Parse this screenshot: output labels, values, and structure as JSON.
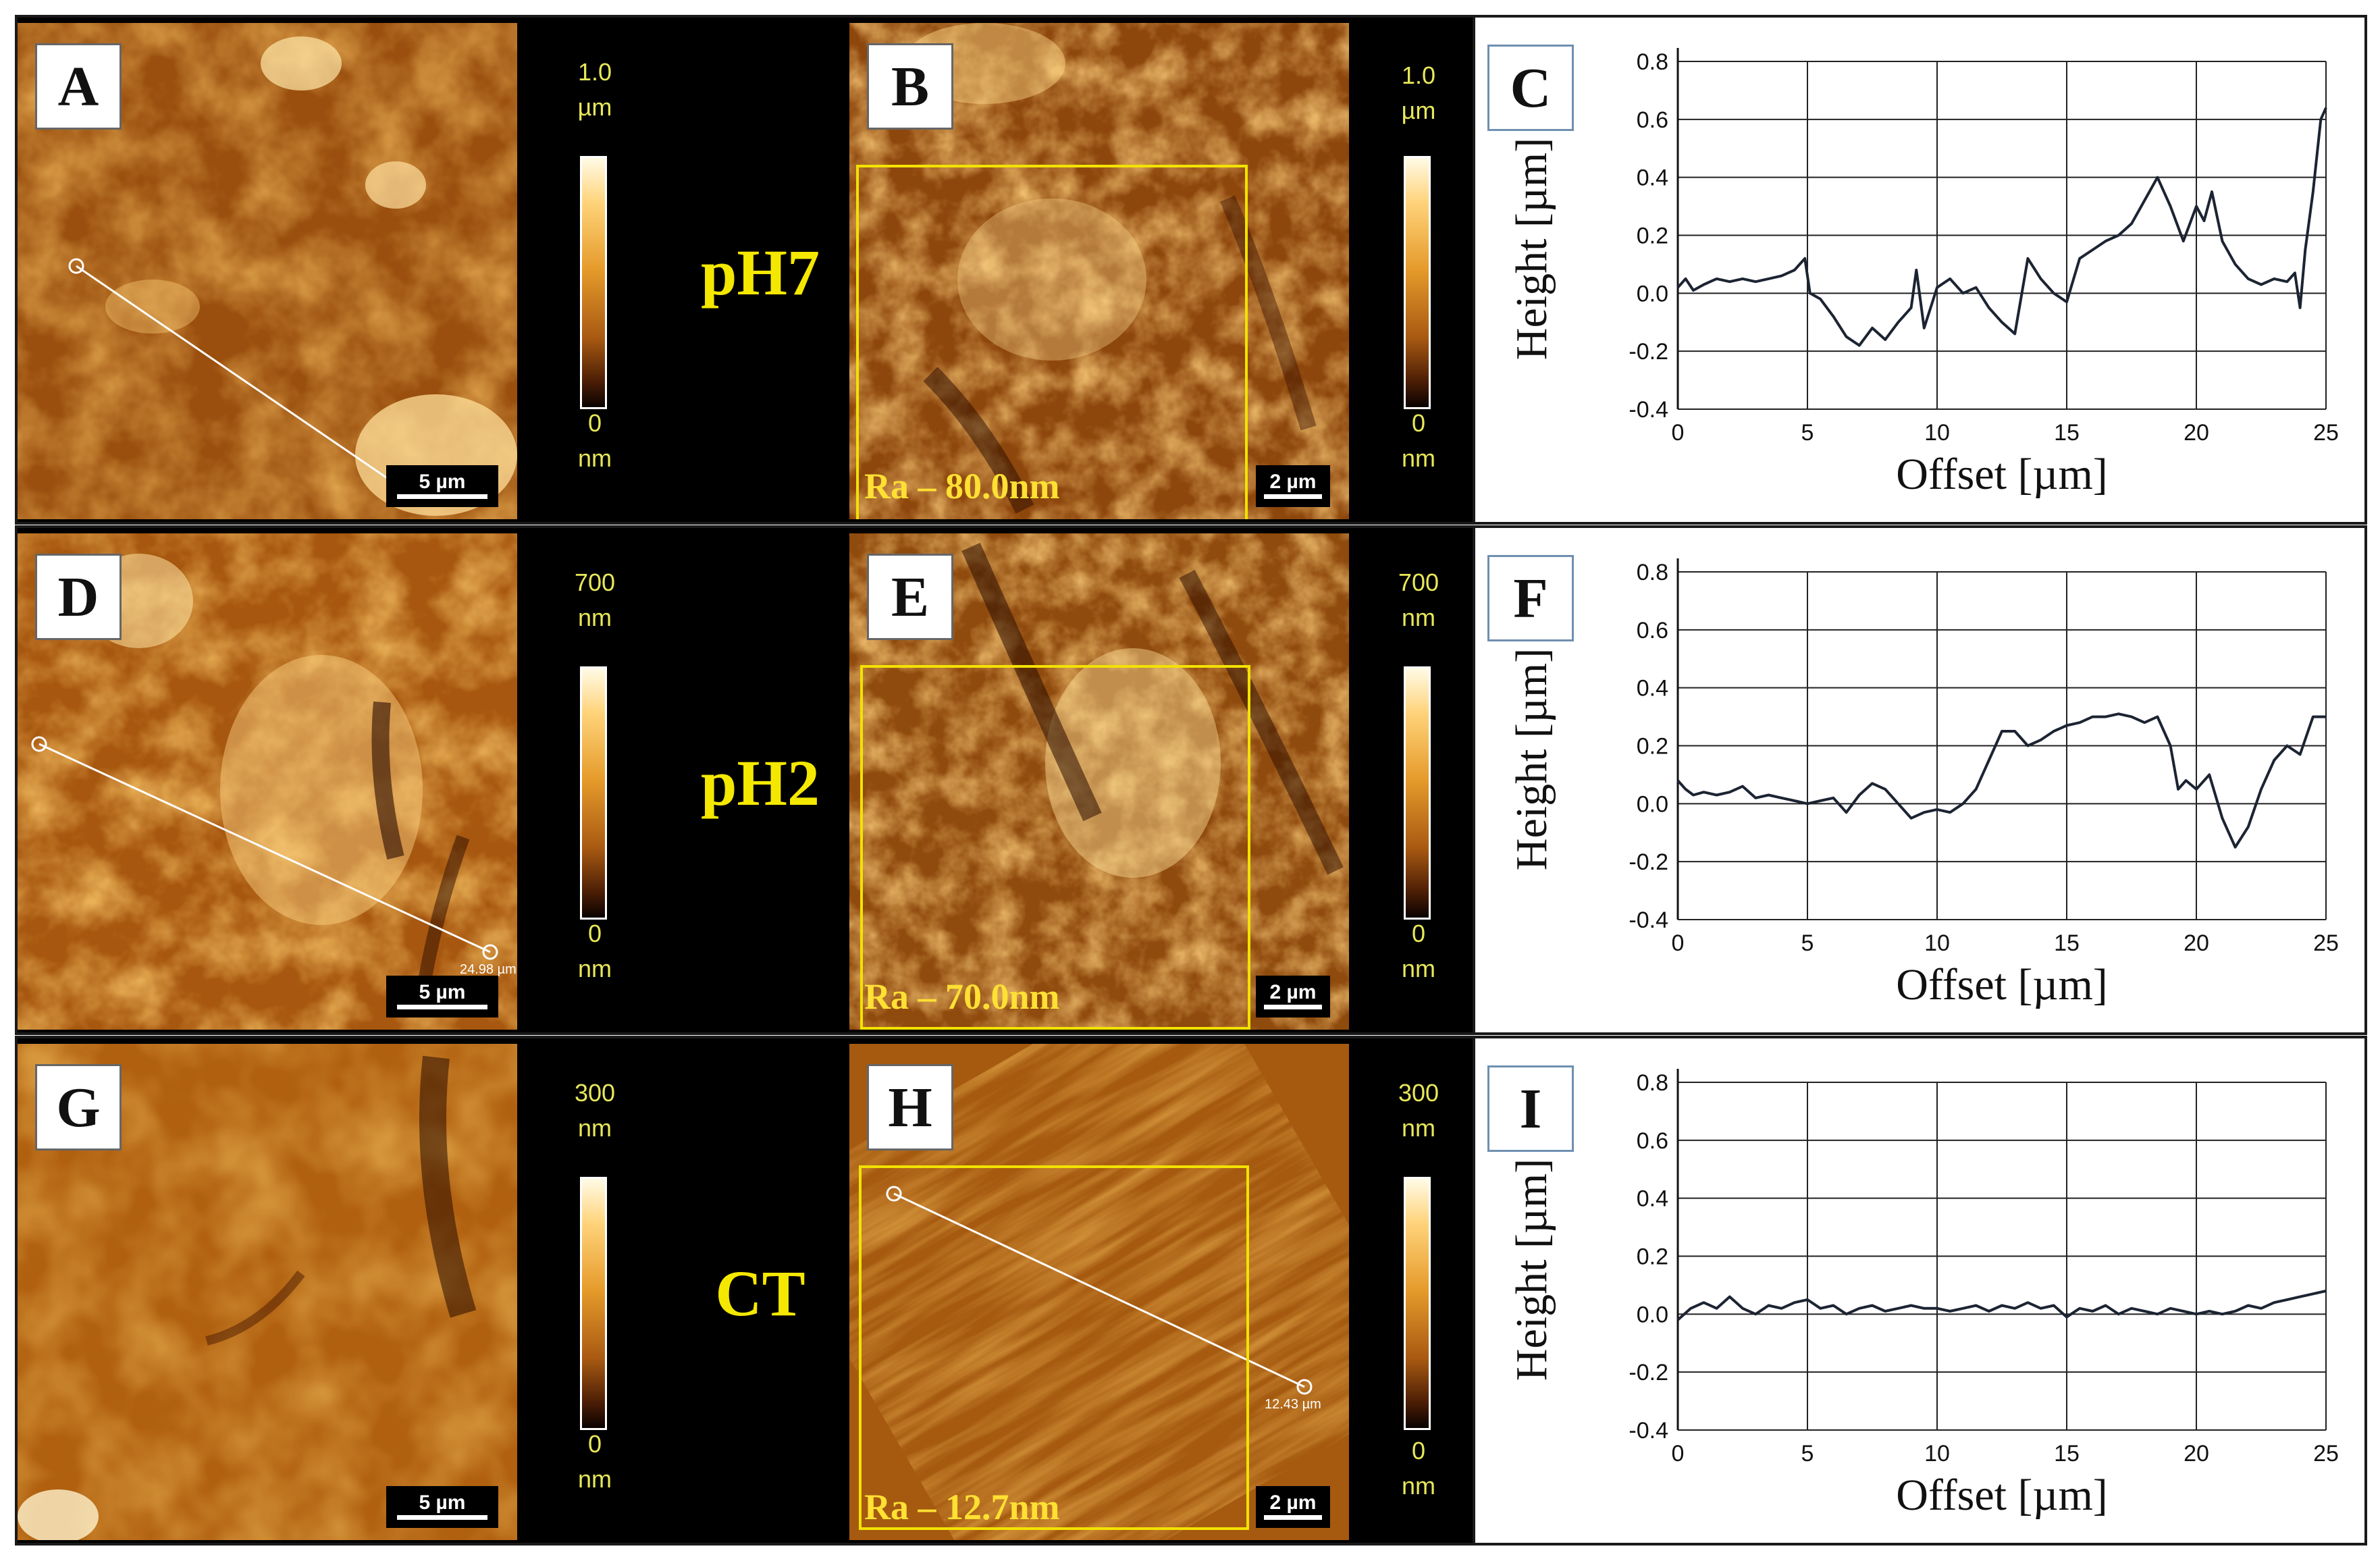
{
  "figure": {
    "rows": [
      {
        "condition_label": "pH7",
        "panel_left": "A",
        "panel_mid": "B",
        "panel_right": "C",
        "scale_left": "5 µm",
        "scale_mid": "2 µm",
        "colorbar_left": {
          "max_value": "1.0",
          "max_unit": "µm",
          "min_value": "0",
          "min_unit": "nm"
        },
        "colorbar_mid": {
          "max_value": "1.0",
          "max_unit": "µm",
          "min_value": "0",
          "min_unit": "nm"
        },
        "roughness": "Ra – 80.0nm",
        "line_label": ""
      },
      {
        "condition_label": "pH2",
        "panel_left": "D",
        "panel_mid": "E",
        "panel_right": "F",
        "scale_left": "5 µm",
        "scale_mid": "2 µm",
        "colorbar_left": {
          "max_value": "700",
          "max_unit": "nm",
          "min_value": "0",
          "min_unit": "nm"
        },
        "colorbar_mid": {
          "max_value": "700",
          "max_unit": "nm",
          "min_value": "0",
          "min_unit": "nm"
        },
        "roughness": "Ra – 70.0nm",
        "line_label": "24.98 µm"
      },
      {
        "condition_label": "CT",
        "panel_left": "G",
        "panel_mid": "H",
        "panel_right": "I",
        "scale_left": "5 µm",
        "scale_mid": "2 µm",
        "colorbar_left": {
          "max_value": "300",
          "max_unit": "nm",
          "min_value": "0",
          "min_unit": "nm"
        },
        "colorbar_mid": {
          "max_value": "300",
          "max_unit": "nm",
          "min_value": "0",
          "min_unit": "nm"
        },
        "roughness": "Ra – 12.7nm",
        "line_label": "12.43 µm"
      }
    ]
  },
  "chart_data": [
    {
      "type": "line",
      "panel": "C",
      "xlabel": "Offset [µm]",
      "ylabel": "Height [µm]",
      "xlim": [
        0,
        25
      ],
      "ylim": [
        -0.4,
        0.8
      ],
      "xticks": [
        "0",
        "5",
        "10",
        "15",
        "20",
        "25"
      ],
      "yticks": [
        "0.8",
        "0.6",
        "0.4",
        "0.2",
        "0.0",
        "-0.2",
        "-0.4"
      ],
      "x": [
        0,
        0.3,
        0.6,
        1,
        1.5,
        2,
        2.5,
        3,
        3.5,
        4,
        4.5,
        4.9,
        5.1,
        5.5,
        6,
        6.5,
        7,
        7.5,
        8,
        8.5,
        9,
        9.2,
        9.5,
        10,
        10.5,
        11,
        11.5,
        12,
        12.5,
        13,
        13.5,
        14,
        14.5,
        15,
        15.5,
        16,
        16.5,
        17,
        17.5,
        18,
        18.5,
        19,
        19.5,
        20,
        20.3,
        20.6,
        21,
        21.5,
        22,
        22.5,
        23,
        23.5,
        23.8,
        24,
        24.2,
        24.5,
        24.8,
        25
      ],
      "series": [
        {
          "name": "pH7",
          "values": [
            0.02,
            0.05,
            0.01,
            0.03,
            0.05,
            0.04,
            0.05,
            0.04,
            0.05,
            0.06,
            0.08,
            0.12,
            0.0,
            -0.02,
            -0.08,
            -0.15,
            -0.18,
            -0.12,
            -0.16,
            -0.1,
            -0.05,
            0.08,
            -0.12,
            0.02,
            0.05,
            0.0,
            0.02,
            -0.05,
            -0.1,
            -0.14,
            0.12,
            0.05,
            0.0,
            -0.03,
            0.12,
            0.15,
            0.18,
            0.2,
            0.24,
            0.32,
            0.4,
            0.3,
            0.18,
            0.3,
            0.25,
            0.35,
            0.18,
            0.1,
            0.05,
            0.03,
            0.05,
            0.04,
            0.07,
            -0.05,
            0.15,
            0.35,
            0.6,
            0.64
          ]
        }
      ]
    },
    {
      "type": "line",
      "panel": "F",
      "xlabel": "Offset [µm]",
      "ylabel": "Height [µm]",
      "xlim": [
        0,
        25
      ],
      "ylim": [
        -0.4,
        0.8
      ],
      "xticks": [
        "0",
        "5",
        "10",
        "15",
        "20",
        "25"
      ],
      "yticks": [
        "0.8",
        "0.6",
        "0.4",
        "0.2",
        "0.0",
        "-0.2",
        "-0.4"
      ],
      "x": [
        0,
        0.3,
        0.6,
        1,
        1.5,
        2,
        2.5,
        3,
        3.5,
        4,
        4.5,
        5,
        5.5,
        6,
        6.5,
        7,
        7.5,
        8,
        8.5,
        9,
        9.5,
        10,
        10.5,
        11,
        11.5,
        12,
        12.5,
        13,
        13.5,
        14,
        14.5,
        15,
        15.5,
        16,
        16.5,
        17,
        17.5,
        18,
        18.5,
        19,
        19.3,
        19.6,
        20,
        20.5,
        21,
        21.5,
        22,
        22.5,
        23,
        23.5,
        24,
        24.5,
        25
      ],
      "series": [
        {
          "name": "pH2",
          "values": [
            0.08,
            0.05,
            0.03,
            0.04,
            0.03,
            0.04,
            0.06,
            0.02,
            0.03,
            0.02,
            0.01,
            0.0,
            0.01,
            0.02,
            -0.03,
            0.03,
            0.07,
            0.05,
            0.0,
            -0.05,
            -0.03,
            -0.02,
            -0.03,
            0.0,
            0.05,
            0.15,
            0.25,
            0.25,
            0.2,
            0.22,
            0.25,
            0.27,
            0.28,
            0.3,
            0.3,
            0.31,
            0.3,
            0.28,
            0.3,
            0.2,
            0.05,
            0.08,
            0.05,
            0.1,
            -0.05,
            -0.15,
            -0.08,
            0.05,
            0.15,
            0.2,
            0.17,
            0.3,
            0.3
          ]
        }
      ]
    },
    {
      "type": "line",
      "panel": "I",
      "xlabel": "Offset [µm]",
      "ylabel": "Height [µm]",
      "xlim": [
        0,
        25
      ],
      "ylim": [
        -0.4,
        0.8
      ],
      "xticks": [
        "0",
        "5",
        "10",
        "15",
        "20",
        "25"
      ],
      "yticks": [
        "0.8",
        "0.6",
        "0.4",
        "0.2",
        "0.0",
        "-0.2",
        "-0.4"
      ],
      "x": [
        0,
        0.5,
        1,
        1.5,
        2,
        2.5,
        3,
        3.5,
        4,
        4.5,
        5,
        5.5,
        6,
        6.5,
        7,
        7.5,
        8,
        8.5,
        9,
        9.5,
        10,
        10.5,
        11,
        11.5,
        12,
        12.5,
        13,
        13.5,
        14,
        14.5,
        15,
        15.5,
        16,
        16.5,
        17,
        17.5,
        18,
        18.5,
        19,
        19.5,
        20,
        20.5,
        21,
        21.5,
        22,
        22.5,
        23,
        23.5,
        24,
        24.5,
        25
      ],
      "series": [
        {
          "name": "CT",
          "values": [
            -0.02,
            0.02,
            0.04,
            0.02,
            0.06,
            0.02,
            0.0,
            0.03,
            0.02,
            0.04,
            0.05,
            0.02,
            0.03,
            0.0,
            0.02,
            0.03,
            0.01,
            0.02,
            0.03,
            0.02,
            0.02,
            0.01,
            0.02,
            0.03,
            0.01,
            0.03,
            0.02,
            0.04,
            0.02,
            0.03,
            -0.01,
            0.02,
            0.01,
            0.03,
            0.0,
            0.02,
            0.01,
            0.0,
            0.02,
            0.01,
            0.0,
            0.01,
            0.0,
            0.01,
            0.03,
            0.02,
            0.04,
            0.05,
            0.06,
            0.07,
            0.08
          ]
        }
      ]
    }
  ]
}
